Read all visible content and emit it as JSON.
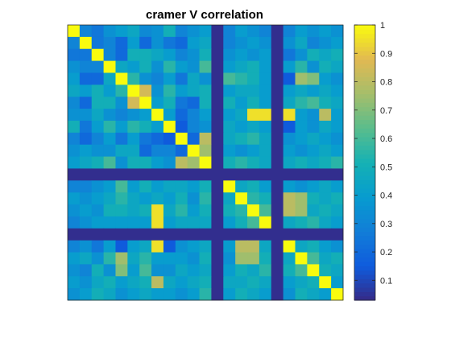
{
  "chart_data": {
    "type": "heatmap",
    "title": "cramer V correlation",
    "xlabel": "",
    "ylabel": "",
    "grid": false,
    "axis_ticks_visible": false,
    "colormap": "parula",
    "clim": [
      0.03,
      1.0
    ],
    "colorbar": {
      "location": "right",
      "ticks": [
        0.1,
        0.2,
        0.3,
        0.4,
        0.5,
        0.6,
        0.7,
        0.8,
        0.9,
        1
      ],
      "tick_labels": [
        "0.1",
        "0.2",
        "0.3",
        "0.4",
        "0.5",
        "0.6",
        "0.7",
        "0.8",
        "0.9",
        "1"
      ]
    },
    "n_rows": 23,
    "n_cols": 23,
    "values": [
      [
        1.0,
        0.3,
        0.25,
        0.35,
        0.4,
        0.45,
        0.32,
        0.35,
        0.5,
        0.3,
        0.35,
        0.4,
        0.04,
        0.3,
        0.4,
        0.35,
        0.3,
        0.04,
        0.3,
        0.4,
        0.35,
        0.4,
        0.35
      ],
      [
        0.3,
        1.0,
        0.25,
        0.3,
        0.2,
        0.4,
        0.2,
        0.35,
        0.25,
        0.2,
        0.4,
        0.45,
        0.04,
        0.3,
        0.35,
        0.4,
        0.35,
        0.04,
        0.35,
        0.45,
        0.3,
        0.35,
        0.4
      ],
      [
        0.25,
        0.25,
        1.0,
        0.3,
        0.2,
        0.5,
        0.5,
        0.45,
        0.4,
        0.3,
        0.35,
        0.5,
        0.04,
        0.35,
        0.4,
        0.35,
        0.4,
        0.04,
        0.25,
        0.35,
        0.5,
        0.45,
        0.5
      ],
      [
        0.35,
        0.3,
        0.3,
        1.0,
        0.45,
        0.4,
        0.5,
        0.35,
        0.55,
        0.4,
        0.35,
        0.6,
        0.04,
        0.4,
        0.45,
        0.5,
        0.4,
        0.04,
        0.4,
        0.55,
        0.35,
        0.5,
        0.45
      ],
      [
        0.4,
        0.2,
        0.2,
        0.45,
        1.0,
        0.55,
        0.35,
        0.3,
        0.4,
        0.25,
        0.45,
        0.35,
        0.04,
        0.6,
        0.55,
        0.5,
        0.4,
        0.04,
        0.15,
        0.75,
        0.7,
        0.4,
        0.35
      ],
      [
        0.45,
        0.4,
        0.5,
        0.4,
        0.55,
        1.0,
        0.85,
        0.35,
        0.55,
        0.4,
        0.45,
        0.5,
        0.04,
        0.4,
        0.45,
        0.45,
        0.4,
        0.04,
        0.4,
        0.45,
        0.4,
        0.45,
        0.4
      ],
      [
        0.32,
        0.2,
        0.5,
        0.5,
        0.35,
        0.85,
        1.0,
        0.4,
        0.5,
        0.25,
        0.2,
        0.5,
        0.04,
        0.5,
        0.4,
        0.5,
        0.4,
        0.04,
        0.45,
        0.55,
        0.6,
        0.5,
        0.45
      ],
      [
        0.35,
        0.35,
        0.45,
        0.35,
        0.3,
        0.35,
        0.4,
        1.0,
        0.4,
        0.2,
        0.3,
        0.4,
        0.04,
        0.4,
        0.45,
        0.95,
        0.95,
        0.04,
        0.95,
        0.4,
        0.35,
        0.8,
        0.4
      ],
      [
        0.5,
        0.25,
        0.4,
        0.55,
        0.4,
        0.55,
        0.5,
        0.4,
        1.0,
        0.15,
        0.3,
        0.35,
        0.04,
        0.45,
        0.4,
        0.45,
        0.4,
        0.04,
        0.15,
        0.4,
        0.35,
        0.45,
        0.4
      ],
      [
        0.3,
        0.2,
        0.3,
        0.4,
        0.25,
        0.4,
        0.25,
        0.2,
        0.15,
        1.0,
        0.2,
        0.8,
        0.04,
        0.45,
        0.5,
        0.55,
        0.45,
        0.04,
        0.35,
        0.4,
        0.45,
        0.4,
        0.35
      ],
      [
        0.35,
        0.4,
        0.35,
        0.35,
        0.45,
        0.45,
        0.2,
        0.3,
        0.3,
        0.2,
        1.0,
        0.75,
        0.04,
        0.4,
        0.35,
        0.4,
        0.45,
        0.04,
        0.4,
        0.35,
        0.4,
        0.45,
        0.4
      ],
      [
        0.4,
        0.45,
        0.5,
        0.6,
        0.35,
        0.5,
        0.5,
        0.4,
        0.35,
        0.8,
        0.75,
        1.0,
        0.04,
        0.5,
        0.55,
        0.5,
        0.45,
        0.04,
        0.45,
        0.5,
        0.45,
        0.5,
        0.55
      ],
      [
        0.04,
        0.04,
        0.04,
        0.04,
        0.04,
        0.04,
        0.04,
        0.04,
        0.04,
        0.04,
        0.04,
        0.04,
        0.04,
        0.04,
        0.04,
        0.04,
        0.04,
        0.04,
        0.04,
        0.04,
        0.04,
        0.04,
        0.04
      ],
      [
        0.3,
        0.3,
        0.35,
        0.4,
        0.6,
        0.4,
        0.5,
        0.4,
        0.45,
        0.45,
        0.4,
        0.5,
        0.04,
        1.0,
        0.45,
        0.5,
        0.4,
        0.04,
        0.4,
        0.35,
        0.4,
        0.45,
        0.4
      ],
      [
        0.4,
        0.35,
        0.4,
        0.45,
        0.55,
        0.45,
        0.4,
        0.45,
        0.4,
        0.5,
        0.35,
        0.55,
        0.04,
        0.45,
        1.0,
        0.55,
        0.5,
        0.04,
        0.8,
        0.75,
        0.5,
        0.45,
        0.5
      ],
      [
        0.35,
        0.4,
        0.35,
        0.5,
        0.5,
        0.45,
        0.5,
        0.95,
        0.45,
        0.55,
        0.4,
        0.5,
        0.04,
        0.5,
        0.55,
        1.0,
        0.6,
        0.04,
        0.8,
        0.75,
        0.45,
        0.5,
        0.45
      ],
      [
        0.3,
        0.35,
        0.4,
        0.4,
        0.4,
        0.4,
        0.4,
        0.95,
        0.4,
        0.45,
        0.45,
        0.45,
        0.04,
        0.4,
        0.5,
        0.6,
        1.0,
        0.04,
        0.45,
        0.5,
        0.55,
        0.45,
        0.4
      ],
      [
        0.04,
        0.04,
        0.04,
        0.04,
        0.04,
        0.04,
        0.04,
        0.04,
        0.04,
        0.04,
        0.04,
        0.04,
        0.04,
        0.04,
        0.04,
        0.04,
        0.04,
        0.04,
        0.04,
        0.04,
        0.04,
        0.04,
        0.04
      ],
      [
        0.3,
        0.35,
        0.25,
        0.4,
        0.15,
        0.4,
        0.45,
        0.95,
        0.15,
        0.35,
        0.4,
        0.45,
        0.04,
        0.4,
        0.8,
        0.8,
        0.45,
        0.04,
        1.0,
        0.45,
        0.5,
        0.4,
        0.35
      ],
      [
        0.4,
        0.45,
        0.35,
        0.55,
        0.75,
        0.45,
        0.55,
        0.4,
        0.4,
        0.4,
        0.35,
        0.5,
        0.04,
        0.35,
        0.75,
        0.75,
        0.5,
        0.04,
        0.45,
        1.0,
        0.6,
        0.45,
        0.5
      ],
      [
        0.35,
        0.3,
        0.5,
        0.35,
        0.7,
        0.4,
        0.6,
        0.35,
        0.35,
        0.45,
        0.4,
        0.45,
        0.04,
        0.4,
        0.5,
        0.45,
        0.55,
        0.04,
        0.5,
        0.6,
        1.0,
        0.5,
        0.45
      ],
      [
        0.4,
        0.35,
        0.45,
        0.5,
        0.4,
        0.45,
        0.5,
        0.8,
        0.45,
        0.4,
        0.45,
        0.5,
        0.04,
        0.45,
        0.45,
        0.5,
        0.45,
        0.04,
        0.4,
        0.45,
        0.5,
        1.0,
        0.4
      ],
      [
        0.35,
        0.4,
        0.5,
        0.45,
        0.35,
        0.4,
        0.45,
        0.4,
        0.4,
        0.35,
        0.4,
        0.55,
        0.04,
        0.4,
        0.5,
        0.45,
        0.4,
        0.04,
        0.35,
        0.5,
        0.45,
        0.4,
        1.0
      ]
    ]
  }
}
